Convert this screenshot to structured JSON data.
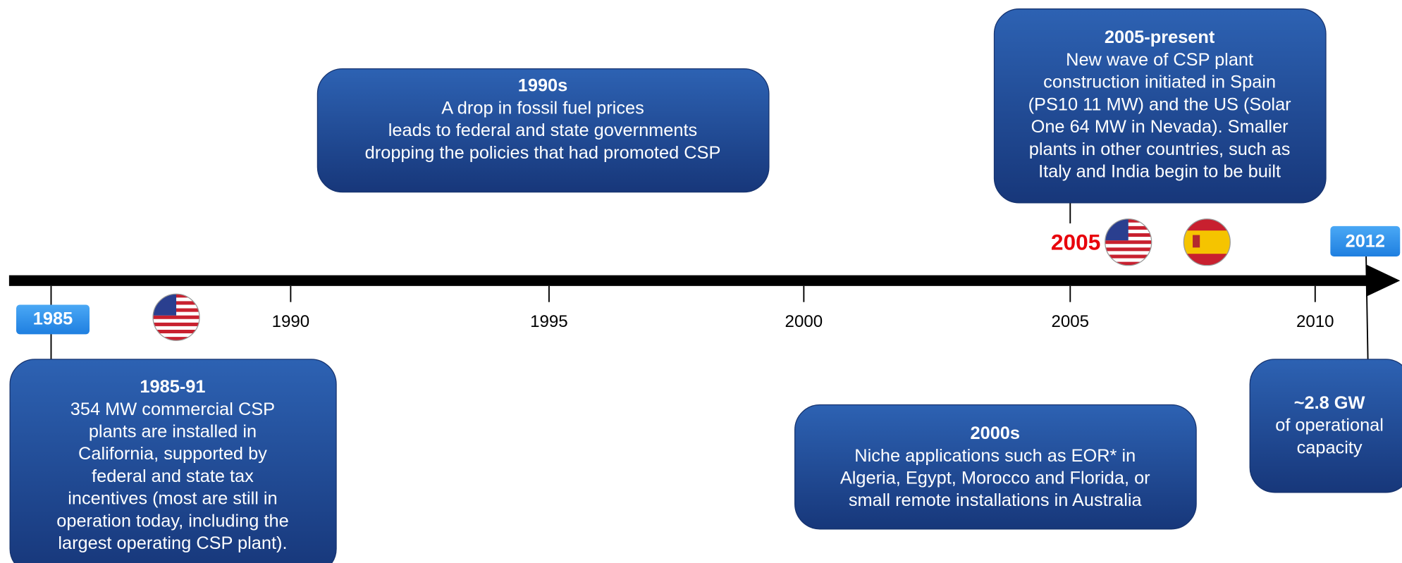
{
  "timeline": {
    "ticks": [
      "1990",
      "1995",
      "2000",
      "2005",
      "2010"
    ],
    "start_label": "1985",
    "end_label": "2012",
    "highlight": "2005"
  },
  "events": [
    {
      "title": "1985-91",
      "lines": [
        "354 MW commercial CSP",
        "plants are installed in",
        "California, supported by",
        "federal and state tax",
        "incentives (most are still in",
        "operation today, including the",
        "largest operating CSP plant)."
      ]
    },
    {
      "title": "1990s",
      "lines": [
        "A drop in fossil fuel prices",
        "leads to federal and state governments",
        "dropping the policies that had promoted CSP"
      ]
    },
    {
      "title": "2000s",
      "lines": [
        "Niche applications such as EOR* in",
        "Algeria, Egypt, Morocco and Florida, or",
        "small remote installations in Australia"
      ]
    },
    {
      "title": "2005-present",
      "lines": [
        "New wave of CSP plant",
        "construction initiated in Spain",
        "(PS10 11 MW) and the US (Solar",
        "One 64 MW in Nevada). Smaller",
        "plants in other countries, such as",
        "Italy and India begin to be built"
      ]
    },
    {
      "title": "~2.8 GW",
      "lines": [
        "of operational",
        "capacity"
      ]
    }
  ]
}
